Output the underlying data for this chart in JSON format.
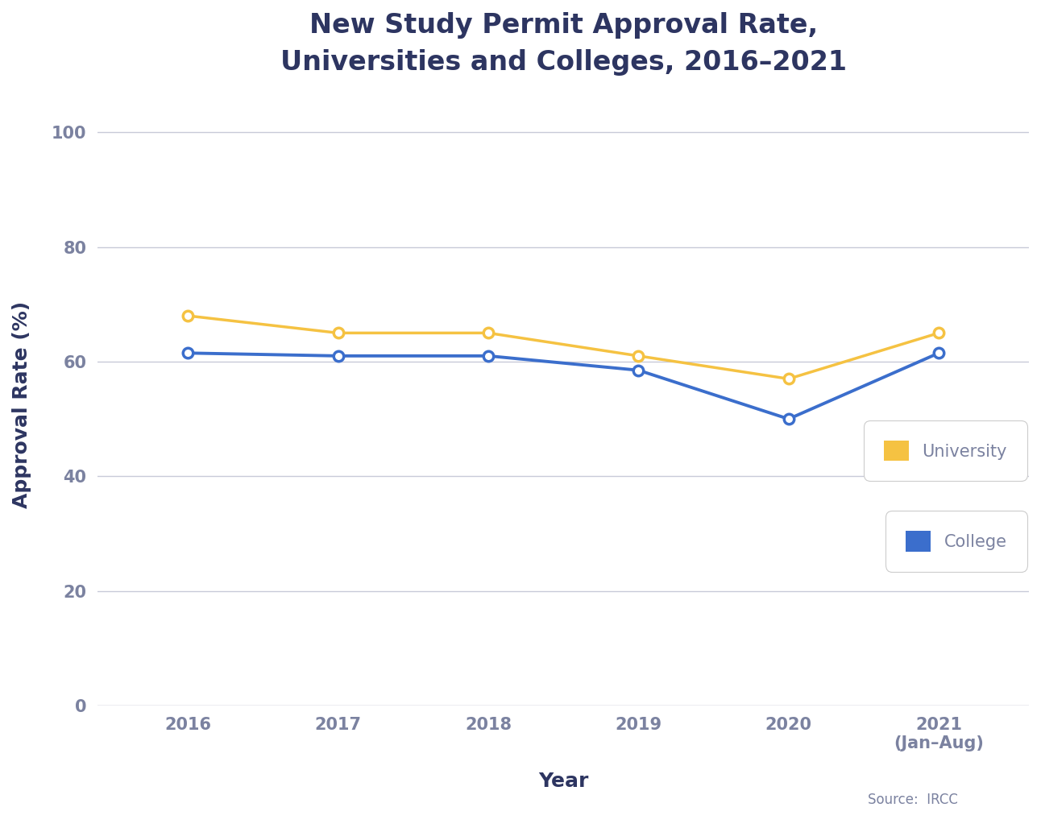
{
  "title_line1": "New Study Permit Approval Rate,",
  "title_line2": "Universities and Colleges, 2016–2021",
  "xlabel": "Year",
  "ylabel": "Approval Rate (%)",
  "years": [
    2016,
    2017,
    2018,
    2019,
    2020,
    2021
  ],
  "university_values": [
    68,
    65,
    65,
    61,
    57,
    65
  ],
  "college_values": [
    61.5,
    61,
    61,
    58.5,
    50,
    61.5
  ],
  "university_color": "#F5C242",
  "college_color": "#3B6ECC",
  "grid_color": "#C8CAD8",
  "axis_label_color": "#2D3561",
  "tick_color": "#7B82A0",
  "title_color": "#2D3561",
  "background_color": "#FFFFFF",
  "ylim": [
    0,
    105
  ],
  "yticks": [
    0,
    20,
    40,
    60,
    80,
    100
  ],
  "source_text": "Source:  IRCC",
  "xticklabels": [
    "2016",
    "2017",
    "2018",
    "2019",
    "2020",
    "2021\n(Jan–Aug)"
  ],
  "legend_university": "University",
  "legend_college": "College"
}
